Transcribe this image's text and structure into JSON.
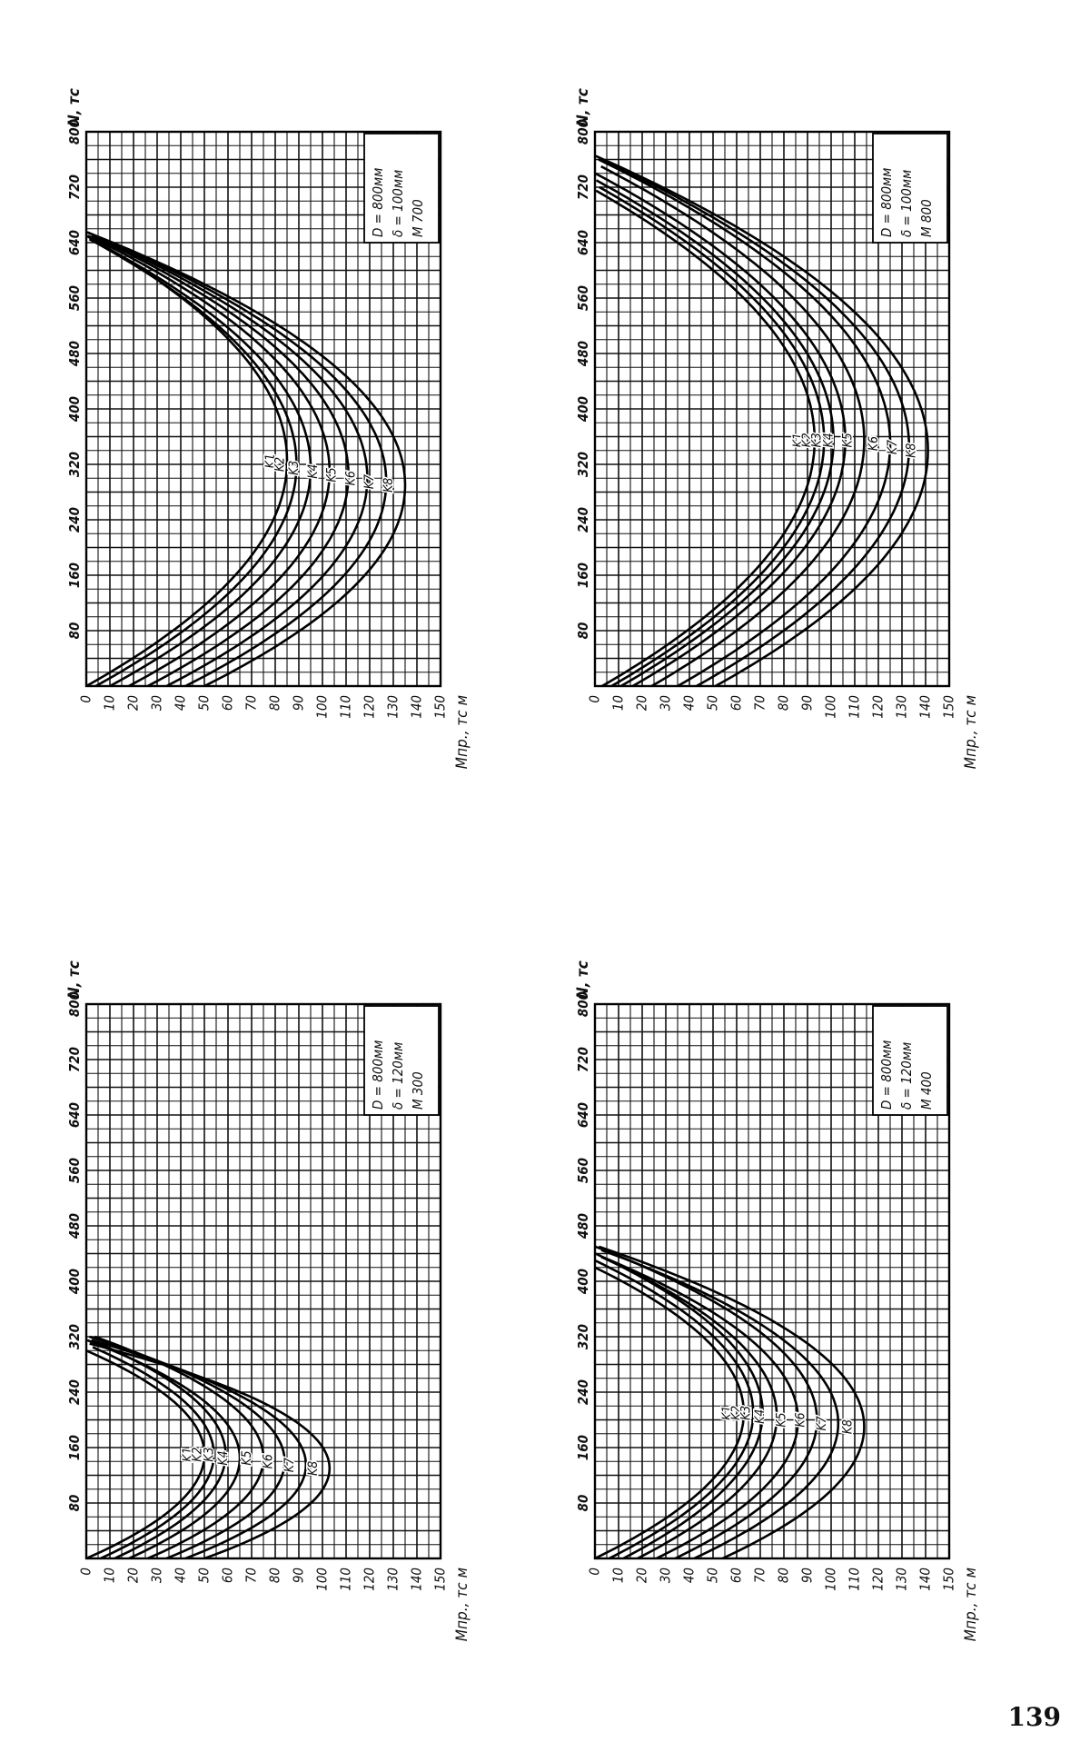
{
  "page_number": "139",
  "chart_data": [
    {
      "id": "m800",
      "type": "line",
      "title_lines": [
        "D = 800мм",
        "δ = 100мм",
        "М 800"
      ],
      "xlabel": "N, тс",
      "ylabel": "Mпр., тс м",
      "x_ticks": [
        "0",
        "80",
        "160",
        "240",
        "320",
        "400",
        "480",
        "560",
        "640",
        "720",
        "800"
      ],
      "y_ticks": [
        "0",
        "10",
        "20",
        "30",
        "40",
        "50",
        "60",
        "70",
        "80",
        "90",
        "100",
        "110",
        "120",
        "130",
        "140",
        "150"
      ],
      "xlim": [
        0,
        800
      ],
      "ylim": [
        0,
        150
      ],
      "grid": true,
      "series": [
        {
          "name": "K1",
          "vertex_x": 355,
          "vertex_y": 93,
          "b0": 3
        },
        {
          "name": "K2",
          "vertex_x": 355,
          "vertex_y": 97,
          "b0": 7
        },
        {
          "name": "K3",
          "vertex_x": 355,
          "vertex_y": 101,
          "b0": 11
        },
        {
          "name": "K4",
          "vertex_x": 355,
          "vertex_y": 106,
          "b0": 16
        },
        {
          "name": "K5",
          "vertex_x": 355,
          "vertex_y": 114,
          "b0": 24
        },
        {
          "name": "K6",
          "vertex_x": 350,
          "vertex_y": 125,
          "b0": 35
        },
        {
          "name": "K7",
          "vertex_x": 345,
          "vertex_y": 133,
          "b0": 43
        },
        {
          "name": "K8",
          "vertex_x": 340,
          "vertex_y": 141,
          "b0": 51
        }
      ]
    },
    {
      "id": "m400",
      "type": "line",
      "title_lines": [
        "D = 800мм",
        "δ = 120мм",
        "М 400"
      ],
      "xlabel": "N, тс",
      "ylabel": "Mпр., тс м",
      "x_ticks": [
        "0",
        "80",
        "160",
        "240",
        "320",
        "400",
        "480",
        "560",
        "640",
        "720",
        "800"
      ],
      "y_ticks": [
        "0",
        "10",
        "20",
        "30",
        "40",
        "50",
        "60",
        "70",
        "80",
        "90",
        "100",
        "110",
        "120",
        "130",
        "140",
        "150"
      ],
      "xlim": [
        0,
        800
      ],
      "ylim": [
        0,
        150
      ],
      "grid": true,
      "series": [
        {
          "name": "K1",
          "vertex_x": 210,
          "vertex_y": 63,
          "b0": 0
        },
        {
          "name": "K2",
          "vertex_x": 210,
          "vertex_y": 67,
          "b0": 6
        },
        {
          "name": "K3",
          "vertex_x": 210,
          "vertex_y": 71,
          "b0": 12
        },
        {
          "name": "K4",
          "vertex_x": 205,
          "vertex_y": 77,
          "b0": 18
        },
        {
          "name": "K5",
          "vertex_x": 200,
          "vertex_y": 86,
          "b0": 26
        },
        {
          "name": "K6",
          "vertex_x": 200,
          "vertex_y": 94,
          "b0": 34
        },
        {
          "name": "K7",
          "vertex_x": 195,
          "vertex_y": 103,
          "b0": 42
        },
        {
          "name": "K8",
          "vertex_x": 190,
          "vertex_y": 114,
          "b0": 54
        }
      ]
    },
    {
      "id": "m700",
      "type": "line",
      "title_lines": [
        "D = 800мм",
        "δ = 100мм",
        "М 700"
      ],
      "xlabel": "N, тс",
      "ylabel": "Mпр., тс м",
      "x_ticks": [
        "0",
        "80",
        "160",
        "240",
        "320",
        "400",
        "480",
        "560",
        "640",
        "720",
        "800"
      ],
      "y_ticks": [
        "0",
        "10",
        "20",
        "30",
        "40",
        "50",
        "60",
        "70",
        "80",
        "90",
        "100",
        "110",
        "120",
        "130",
        "140",
        "150"
      ],
      "xlim": [
        0,
        800
      ],
      "ylim": [
        0,
        150
      ],
      "grid": true,
      "series": [
        {
          "name": "K1",
          "vertex_x": 325,
          "vertex_y": 85,
          "b0": 0
        },
        {
          "name": "K2",
          "vertex_x": 320,
          "vertex_y": 89,
          "b0": 4
        },
        {
          "name": "K3",
          "vertex_x": 315,
          "vertex_y": 95,
          "b0": 10
        },
        {
          "name": "K4",
          "vertex_x": 310,
          "vertex_y": 103,
          "b0": 18
        },
        {
          "name": "K5",
          "vertex_x": 305,
          "vertex_y": 111,
          "b0": 26
        },
        {
          "name": "K6",
          "vertex_x": 300,
          "vertex_y": 119,
          "b0": 34
        },
        {
          "name": "K7",
          "vertex_x": 295,
          "vertex_y": 127,
          "b0": 42
        },
        {
          "name": "K8",
          "vertex_x": 290,
          "vertex_y": 135,
          "b0": 50
        }
      ]
    },
    {
      "id": "m300",
      "type": "line",
      "title_lines": [
        "D = 800мм",
        "δ = 120мм",
        "М 300"
      ],
      "xlabel": "N, тс",
      "ylabel": "Mпр., тс м",
      "x_ticks": [
        "0",
        "80",
        "160",
        "240",
        "320",
        "400",
        "480",
        "560",
        "640",
        "720",
        "800"
      ],
      "y_ticks": [
        "0",
        "10",
        "20",
        "30",
        "40",
        "50",
        "60",
        "70",
        "80",
        "90",
        "100",
        "110",
        "120",
        "130",
        "140",
        "150"
      ],
      "xlim": [
        0,
        800
      ],
      "ylim": [
        0,
        150
      ],
      "grid": true,
      "series": [
        {
          "name": "K1",
          "vertex_x": 150,
          "vertex_y": 50,
          "b0": 0
        },
        {
          "name": "K2",
          "vertex_x": 150,
          "vertex_y": 54,
          "b0": 6
        },
        {
          "name": "K3",
          "vertex_x": 150,
          "vertex_y": 59,
          "b0": 12
        },
        {
          "name": "K4",
          "vertex_x": 145,
          "vertex_y": 65,
          "b0": 18
        },
        {
          "name": "K5",
          "vertex_x": 145,
          "vertex_y": 75,
          "b0": 26
        },
        {
          "name": "K6",
          "vertex_x": 140,
          "vertex_y": 84,
          "b0": 34
        },
        {
          "name": "K7",
          "vertex_x": 135,
          "vertex_y": 93,
          "b0": 42
        },
        {
          "name": "K8",
          "vertex_x": 130,
          "vertex_y": 103,
          "b0": 50
        }
      ]
    }
  ]
}
